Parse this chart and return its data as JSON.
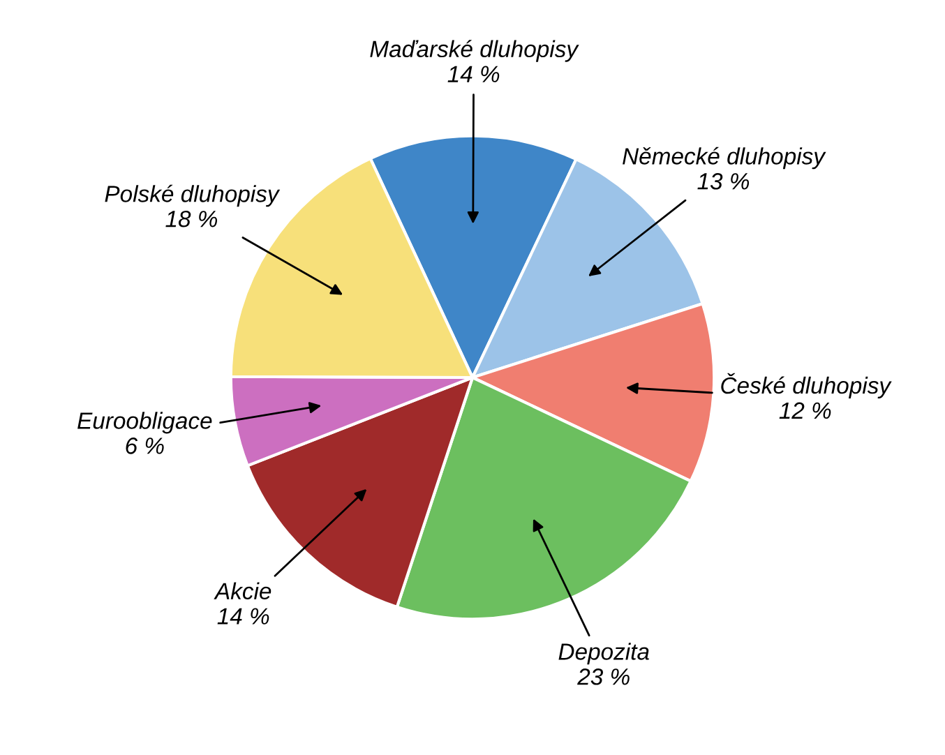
{
  "chart_data": {
    "type": "pie",
    "categories": [
      "Maďarské dluhopisy",
      "Německé dluhopisy",
      "České dluhopisy",
      "Depozita",
      "Akcie",
      "Euroobligace",
      "Polské dluhopisy"
    ],
    "values": [
      14,
      13,
      12,
      23,
      14,
      6,
      18
    ],
    "value_labels": [
      "14 %",
      "13 %",
      "12 %",
      "23 %",
      "14 %",
      "6 %",
      "18 %"
    ],
    "colors": [
      "#3f86c8",
      "#9cc3e8",
      "#f07e70",
      "#6cbf5f",
      "#a02a2a",
      "#cc6fc0",
      "#f7e07a"
    ],
    "legend": false
  }
}
